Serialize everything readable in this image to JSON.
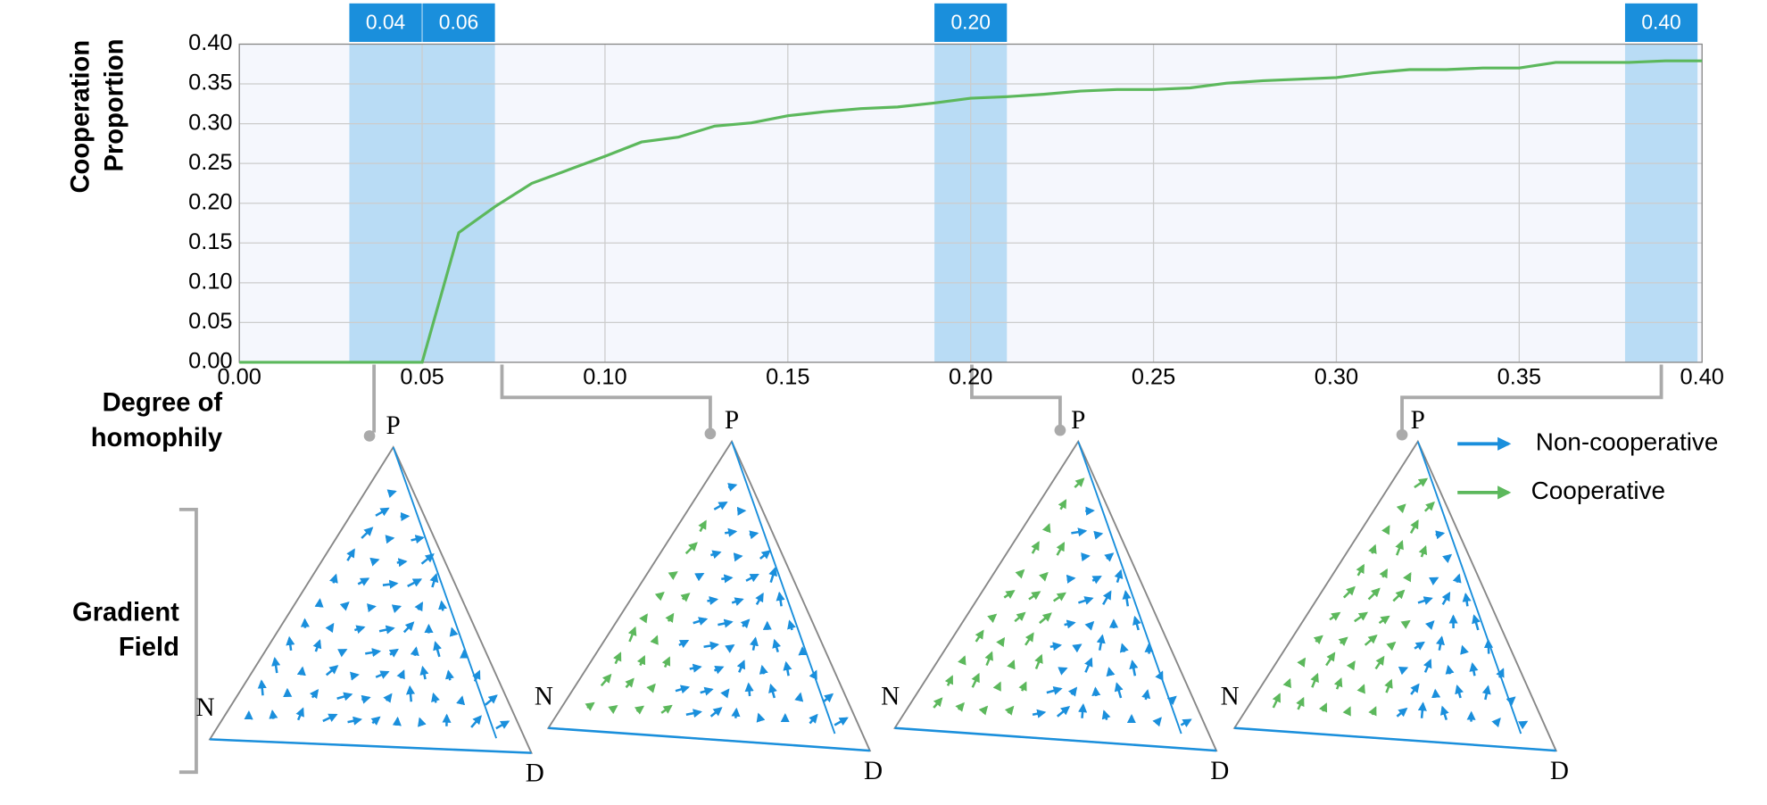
{
  "chart_data": {
    "type": "line",
    "y_label_lines": [
      "Cooperation",
      "Proportion"
    ],
    "x_label_lines": [
      "Degree of",
      "homophily"
    ],
    "x": [
      0,
      0.01,
      0.02,
      0.03,
      0.04,
      0.05,
      0.06,
      0.07,
      0.08,
      0.09,
      0.1,
      0.11,
      0.12,
      0.13,
      0.14,
      0.15,
      0.16,
      0.17,
      0.18,
      0.19,
      0.2,
      0.21,
      0.22,
      0.23,
      0.24,
      0.25,
      0.26,
      0.27,
      0.28,
      0.29,
      0.3,
      0.31,
      0.32,
      0.33,
      0.34,
      0.35,
      0.36,
      0.37,
      0.38,
      0.39,
      0.4
    ],
    "series": [
      {
        "color": "#5cb85c",
        "values": [
          0,
          0,
          0,
          0,
          0,
          0,
          0.163,
          0.196,
          0.225,
          0.242,
          0.259,
          0.277,
          0.283,
          0.297,
          0.301,
          0.31,
          0.315,
          0.319,
          0.321,
          0.326,
          0.332,
          0.334,
          0.337,
          0.341,
          0.343,
          0.343,
          0.345,
          0.351,
          0.354,
          0.356,
          0.358,
          0.364,
          0.368,
          0.368,
          0.37,
          0.37,
          0.377,
          0.377,
          0.377,
          0.379,
          0.379
        ]
      }
    ],
    "xlim": [
      0,
      0.4
    ],
    "ylim": [
      0,
      0.4
    ],
    "xticks": [
      {
        "value": 0,
        "label": "0.00"
      },
      {
        "value": 0.05,
        "label": "0.05"
      },
      {
        "value": 0.1,
        "label": "0.10"
      },
      {
        "value": 0.15,
        "label": "0.15"
      },
      {
        "value": 0.2,
        "label": "0.20"
      },
      {
        "value": 0.25,
        "label": "0.25"
      },
      {
        "value": 0.3,
        "label": "0.30"
      },
      {
        "value": 0.35,
        "label": "0.35"
      },
      {
        "value": 0.4,
        "label": "0.40"
      }
    ],
    "yticks": [
      {
        "value": 0,
        "label": "0.00"
      },
      {
        "value": 0.05,
        "label": "0.05"
      },
      {
        "value": 0.1,
        "label": "0.10"
      },
      {
        "value": 0.15,
        "label": "0.15"
      },
      {
        "value": 0.2,
        "label": "0.20"
      },
      {
        "value": 0.25,
        "label": "0.25"
      },
      {
        "value": 0.3,
        "label": "0.30"
      },
      {
        "value": 0.35,
        "label": "0.35"
      },
      {
        "value": 0.4,
        "label": "0.40"
      }
    ],
    "grid": true,
    "highlights": [
      {
        "value": 0.04,
        "label": "0.04"
      },
      {
        "value": 0.06,
        "label": "0.06"
      },
      {
        "value": 0.2,
        "label": "0.20"
      },
      {
        "value": 0.4,
        "label": "0.40"
      }
    ],
    "highlight_color": "#b9dcf5",
    "panel_title_lines": [
      "Gradient",
      "Field"
    ],
    "vertex_labels": {
      "top": "P",
      "left": "N",
      "right": "D"
    },
    "legend": [
      {
        "name": "Non-cooperative",
        "color": "#1a8fdc"
      },
      {
        "name": "Cooperative",
        "color": "#5cb85c"
      }
    ]
  }
}
